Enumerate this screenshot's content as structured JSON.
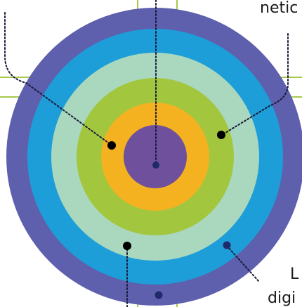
{
  "colors": {
    "ring_outer": "#5e5fad",
    "ring_blue": "#1e9ed8",
    "ring_mint": "#a9d8bf",
    "ring_green": "#a2c73e",
    "ring_orange": "#f4b221",
    "ring_core": "#6f509c",
    "grid_line": "#a6c94a",
    "leader_line": "#1a1a3a",
    "marker_dot": "#000000",
    "marker_dot_navy": "#1f2a6b"
  },
  "labels": {
    "top_right": "netic",
    "bottom_right_upper": "L",
    "bottom_right_lower": "digi"
  }
}
